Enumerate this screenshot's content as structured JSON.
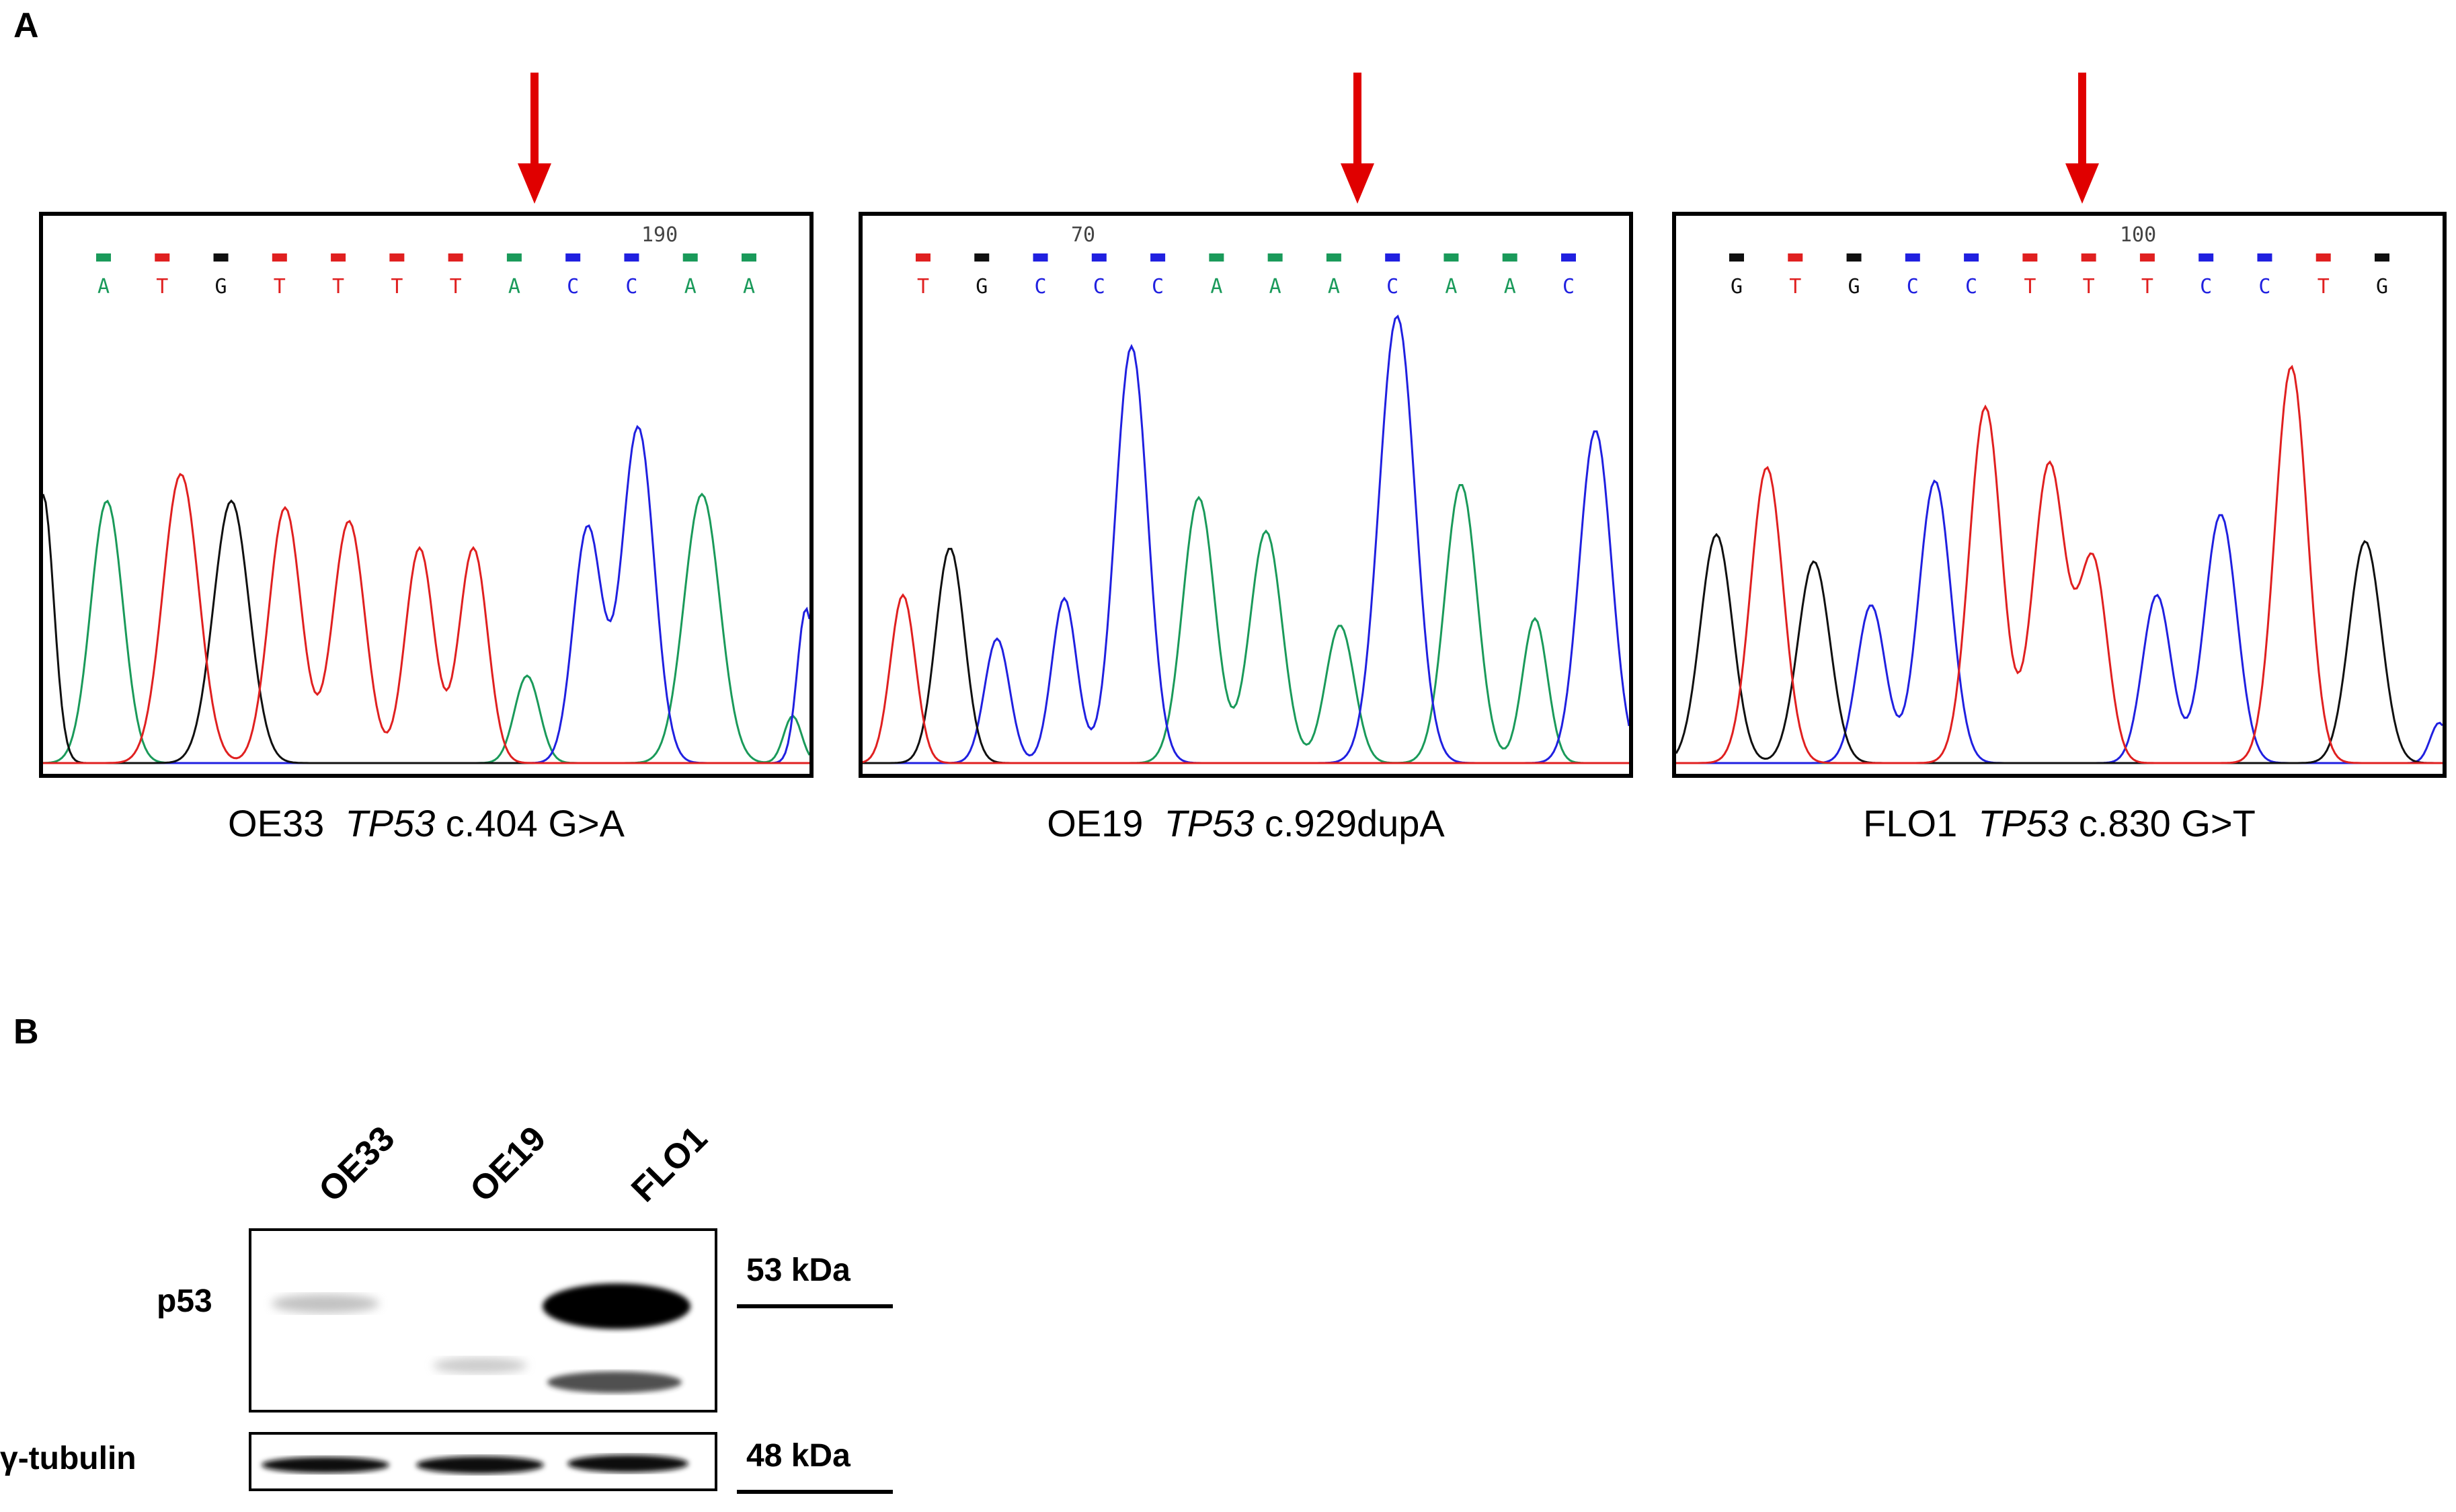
{
  "panel_a": {
    "letter": "A",
    "traces": [
      {
        "sample": "OE33",
        "gene": "TP53",
        "mutation": "c.404 G>A",
        "position_marker": "190",
        "bases": [
          "A",
          "T",
          "G",
          "T",
          "T",
          "T",
          "T",
          "A",
          "C",
          "C",
          "A",
          "A"
        ]
      },
      {
        "sample": "OE19",
        "gene": "TP53",
        "mutation": "c.929dupA",
        "position_marker": "70",
        "bases": [
          "T",
          "G",
          "C",
          "C",
          "C",
          "A",
          "A",
          "A",
          "C",
          "A",
          "A",
          "C"
        ]
      },
      {
        "sample": "FLO1",
        "gene": "TP53",
        "mutation": "c.830 G>T",
        "position_marker": "100",
        "bases": [
          "G",
          "T",
          "G",
          "C",
          "C",
          "T",
          "T",
          "T",
          "C",
          "C",
          "T",
          "G"
        ]
      }
    ]
  },
  "panel_b": {
    "letter": "B",
    "lanes": [
      "OE33",
      "OE19",
      "FLO1"
    ],
    "rows": [
      {
        "label": "p53",
        "marker": "53 kDa"
      },
      {
        "label": "γ-tubulin",
        "marker": "48 kDa"
      }
    ]
  },
  "colors": {
    "A": "#1a9a5a",
    "C": "#2020e0",
    "G": "#101010",
    "T": "#e02020",
    "arrow": "#e00000"
  }
}
